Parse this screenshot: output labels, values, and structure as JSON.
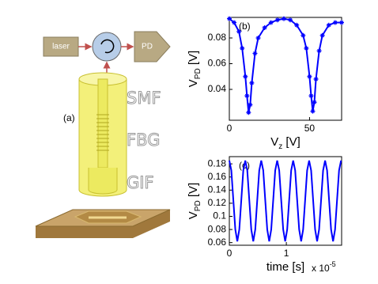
{
  "diagram": {
    "panel": "(a)",
    "laser": "laser",
    "detector": "PD",
    "fiber_labels": [
      "SMF",
      "FBG",
      "GIF"
    ]
  },
  "chart_data": [
    {
      "type": "line",
      "panel": "(b)",
      "color": "#0000ff",
      "marker": "*",
      "x_label": {
        "text": "V",
        "subscript": "z",
        "unit": " [V]"
      },
      "y_label": {
        "text": "V",
        "subscript": "PD",
        "unit": " [V]"
      },
      "xlim": [
        0,
        70
      ],
      "ylim": [
        0.016,
        0.096
      ],
      "xticks": [
        0,
        50
      ],
      "yticks": [
        0.04,
        0.06,
        0.08
      ],
      "x": [
        0,
        3,
        6,
        8,
        10,
        11,
        12,
        13,
        14,
        16,
        18,
        22,
        26,
        30,
        34,
        38,
        42,
        46,
        48,
        50,
        51,
        52,
        53,
        54,
        56,
        58,
        62,
        66,
        70
      ],
      "series": [
        {
          "values": [
            0.095,
            0.092,
            0.085,
            0.072,
            0.05,
            0.035,
            0.022,
            0.028,
            0.045,
            0.068,
            0.08,
            0.088,
            0.092,
            0.094,
            0.095,
            0.094,
            0.09,
            0.082,
            0.072,
            0.05,
            0.035,
            0.023,
            0.03,
            0.048,
            0.07,
            0.082,
            0.09,
            0.092,
            0.092
          ]
        }
      ]
    },
    {
      "type": "line",
      "panel": "(c)",
      "color": "#0000ff",
      "x_label": {
        "text": "time [s]"
      },
      "x_multiplier": {
        "text": "x 10",
        "exponent": "-5"
      },
      "y_label": {
        "text": "V",
        "subscript": "PD",
        "unit": " [V]"
      },
      "xlim": [
        0,
        1.97
      ],
      "ylim": [
        0.056,
        0.191
      ],
      "xticks": [
        0,
        1
      ],
      "yticks": [
        0.06,
        0.08,
        0.1,
        0.12,
        0.14,
        0.16,
        0.18
      ],
      "x": [
        0,
        0.035,
        0.07,
        0.105,
        0.14,
        0.175,
        0.21,
        0.245,
        0.28,
        0.315,
        0.35,
        0.385,
        0.42,
        0.455,
        0.49,
        0.525,
        0.56,
        0.595,
        0.63,
        0.665,
        0.7,
        0.735,
        0.77,
        0.805,
        0.84,
        0.875,
        0.91,
        0.945,
        0.98,
        1.015,
        1.05,
        1.085,
        1.12,
        1.155,
        1.19,
        1.225,
        1.26,
        1.295,
        1.33,
        1.365,
        1.4,
        1.435,
        1.47,
        1.505,
        1.54,
        1.575,
        1.61,
        1.645,
        1.68,
        1.715,
        1.75,
        1.785,
        1.82,
        1.855,
        1.89,
        1.925,
        1.96
      ],
      "series": [
        {
          "values": [
            0.185,
            0.17,
            0.125,
            0.08,
            0.062,
            0.08,
            0.125,
            0.17,
            0.185,
            0.17,
            0.125,
            0.08,
            0.062,
            0.08,
            0.125,
            0.17,
            0.185,
            0.17,
            0.125,
            0.08,
            0.062,
            0.08,
            0.125,
            0.17,
            0.185,
            0.17,
            0.125,
            0.08,
            0.062,
            0.08,
            0.125,
            0.17,
            0.185,
            0.17,
            0.125,
            0.08,
            0.062,
            0.08,
            0.125,
            0.17,
            0.185,
            0.17,
            0.125,
            0.08,
            0.062,
            0.08,
            0.125,
            0.17,
            0.185,
            0.17,
            0.125,
            0.08,
            0.062,
            0.08,
            0.125,
            0.17,
            0.185
          ]
        }
      ]
    }
  ]
}
